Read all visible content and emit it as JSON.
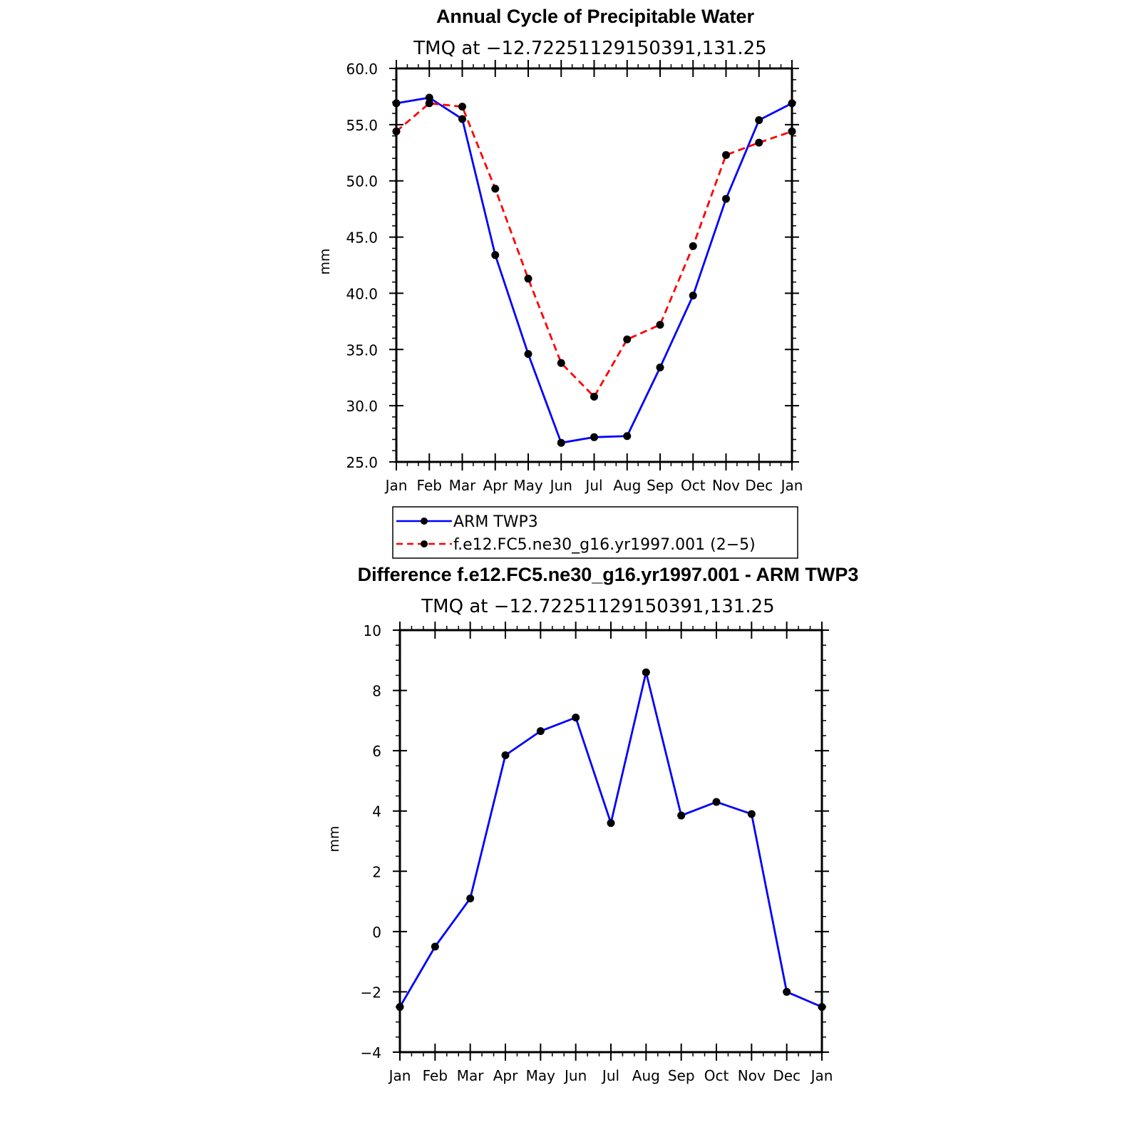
{
  "chart_data": [
    {
      "type": "line",
      "title": "Annual Cycle of Precipitable Water",
      "subtitle": "TMQ at −12.72251129150391,131.25",
      "xlabel": "",
      "ylabel": "mm",
      "categories": [
        "Jan",
        "Feb",
        "Mar",
        "Apr",
        "May",
        "Jun",
        "Jul",
        "Aug",
        "Sep",
        "Oct",
        "Nov",
        "Dec",
        "Jan"
      ],
      "ylim": [
        25,
        60
      ],
      "yticks": [
        25,
        30,
        35,
        40,
        45,
        50,
        55,
        60
      ],
      "ytick_labels": [
        "25.0",
        "30.0",
        "35.0",
        "40.0",
        "45.0",
        "50.0",
        "55.0",
        "60.0"
      ],
      "series": [
        {
          "name": "ARM TWP3",
          "color": "#0000ff",
          "dash": "solid",
          "values": [
            56.9,
            57.4,
            55.5,
            43.4,
            34.6,
            26.7,
            27.2,
            27.3,
            33.4,
            39.8,
            48.4,
            55.4,
            56.9
          ]
        },
        {
          "name": "f.e12.FC5.ne30_g16.yr1997.001 (2−5)",
          "color": "#ff0000",
          "dash": "dashed",
          "values": [
            54.4,
            56.9,
            56.6,
            49.3,
            41.3,
            33.8,
            30.8,
            35.9,
            37.2,
            44.2,
            52.3,
            53.4,
            54.4
          ]
        }
      ],
      "legend": "below"
    },
    {
      "type": "line",
      "title": "Difference f.e12.FC5.ne30_g16.yr1997.001 - ARM TWP3",
      "subtitle": "TMQ at −12.72251129150391,131.25",
      "xlabel": "",
      "ylabel": "mm",
      "categories": [
        "Jan",
        "Feb",
        "Mar",
        "Apr",
        "May",
        "Jun",
        "Jul",
        "Aug",
        "Sep",
        "Oct",
        "Nov",
        "Dec",
        "Jan"
      ],
      "ylim": [
        -4,
        10
      ],
      "yticks": [
        -4,
        -2,
        0,
        2,
        4,
        6,
        8,
        10
      ],
      "ytick_labels": [
        "−4",
        "−2",
        "0",
        "2",
        "4",
        "6",
        "8",
        "10"
      ],
      "series": [
        {
          "name": "difference",
          "color": "#0000ff",
          "dash": "solid",
          "values": [
            -2.5,
            -0.5,
            1.1,
            5.85,
            6.65,
            7.1,
            3.6,
            8.6,
            3.85,
            4.3,
            3.9,
            -2.0,
            -2.5
          ]
        }
      ]
    }
  ]
}
